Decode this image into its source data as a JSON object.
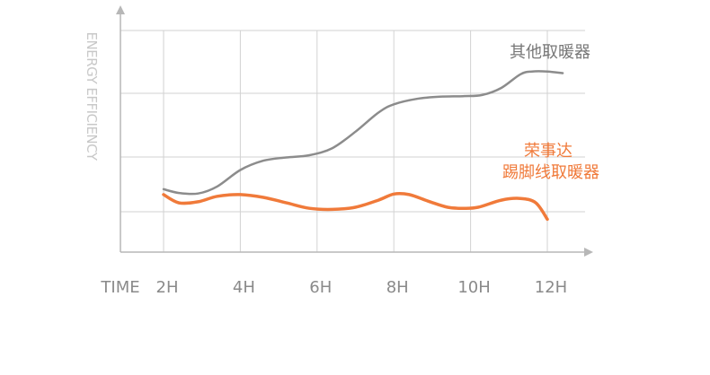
{
  "chart_data": {
    "type": "line",
    "xlabel": "TIME",
    "ylabel": "ENERGY EFFICIENCY",
    "categories": [
      "2H",
      "4H",
      "6H",
      "8H",
      "10H",
      "12H"
    ],
    "x": [
      2,
      4,
      6,
      8,
      10,
      12
    ],
    "xlim": [
      1.0,
      13.0
    ],
    "ylim": [
      0,
      4
    ],
    "y_ticks": [
      1,
      2,
      3,
      4
    ],
    "grid": true,
    "series": [
      {
        "name": "其他取暖器",
        "color": "#8c8c8c",
        "x": [
          2.0,
          2.4,
          2.9,
          3.4,
          4.0,
          4.6,
          5.2,
          5.8,
          6.4,
          7.0,
          7.6,
          8.0,
          8.6,
          9.2,
          9.8,
          10.3,
          10.8,
          11.3,
          11.6,
          12.0,
          12.4
        ],
        "y": [
          1.15,
          1.08,
          1.07,
          1.2,
          1.5,
          1.67,
          1.73,
          1.77,
          1.9,
          2.2,
          2.55,
          2.7,
          2.8,
          2.84,
          2.85,
          2.87,
          3.0,
          3.25,
          3.3,
          3.3,
          3.27
        ]
      },
      {
        "name": "荣事达\n踢脚线取暖器",
        "color": "#f07a3a",
        "x": [
          2.0,
          2.4,
          2.9,
          3.4,
          4.0,
          4.6,
          5.2,
          5.8,
          6.4,
          7.0,
          7.6,
          8.0,
          8.4,
          8.9,
          9.4,
          9.8,
          10.2,
          10.8,
          11.3,
          11.7,
          12.0
        ],
        "y": [
          1.05,
          0.9,
          0.92,
          1.02,
          1.05,
          1.0,
          0.9,
          0.8,
          0.78,
          0.82,
          0.95,
          1.06,
          1.05,
          0.93,
          0.82,
          0.8,
          0.82,
          0.95,
          0.98,
          0.9,
          0.6
        ]
      }
    ]
  }
}
